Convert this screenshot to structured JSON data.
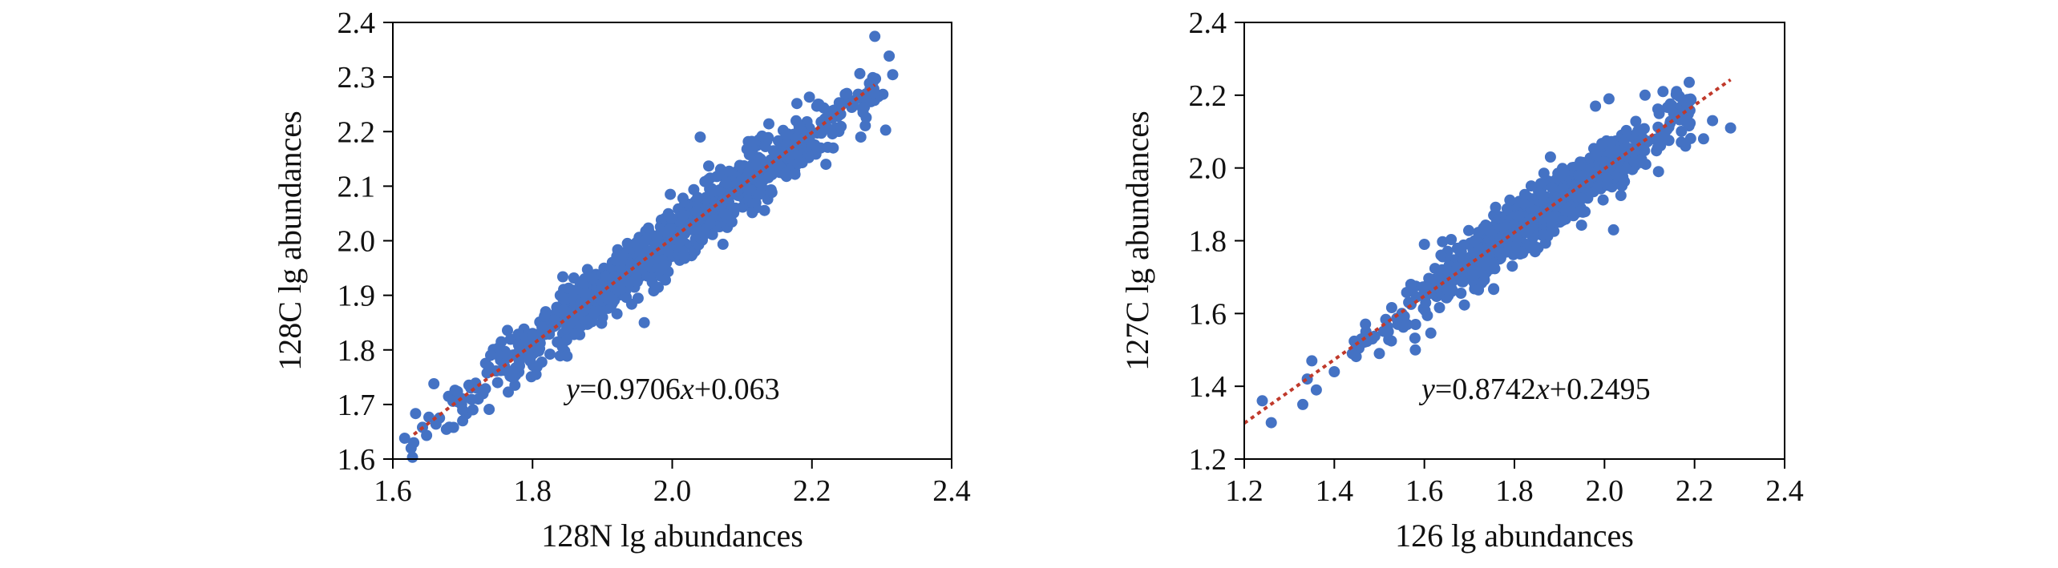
{
  "colors": {
    "point": "#4472C4",
    "fit": "#C0392B",
    "axis": "#000000"
  },
  "chart_data": [
    {
      "type": "scatter",
      "xlabel": "128N lg abundances",
      "ylabel": "128C lg abundances",
      "xlim": [
        1.6,
        2.4
      ],
      "ylim": [
        1.6,
        2.4
      ],
      "xticks": [
        "1.6",
        "1.8",
        "2.0",
        "2.2",
        "2.4"
      ],
      "yticks": [
        "1.6",
        "1.7",
        "1.8",
        "1.9",
        "2.0",
        "2.1",
        "2.2",
        "2.3",
        "2.4"
      ],
      "grid": false,
      "equation": {
        "y": "y",
        "eq1": "=0.9706",
        "x": "x",
        "eq2": "+0.063"
      },
      "fit": {
        "slope": 0.9706,
        "intercept": 0.063,
        "x_range": [
          1.63,
          2.29
        ]
      },
      "cloud": {
        "x_range": [
          1.63,
          2.29
        ],
        "spread": 0.028,
        "n": 900
      },
      "points": [
        {
          "x": 1.63,
          "y": 1.63
        },
        {
          "x": 1.7,
          "y": 1.67
        },
        {
          "x": 1.7,
          "y": 1.69
        },
        {
          "x": 1.72,
          "y": 1.73
        },
        {
          "x": 1.75,
          "y": 1.74
        },
        {
          "x": 1.74,
          "y": 1.79
        },
        {
          "x": 1.76,
          "y": 1.77
        },
        {
          "x": 1.78,
          "y": 1.81
        },
        {
          "x": 1.8,
          "y": 1.83
        },
        {
          "x": 1.77,
          "y": 1.76
        },
        {
          "x": 1.96,
          "y": 1.85
        },
        {
          "x": 2.04,
          "y": 2.19
        },
        {
          "x": 2.27,
          "y": 2.19
        },
        {
          "x": 2.29,
          "y": 2.27
        },
        {
          "x": 2.25,
          "y": 2.27
        },
        {
          "x": 2.21,
          "y": 2.25
        },
        {
          "x": 2.22,
          "y": 2.14
        }
      ]
    },
    {
      "type": "scatter",
      "xlabel": "126 lg abundances",
      "ylabel": "127C lg abundances",
      "xlim": [
        1.2,
        2.4
      ],
      "ylim": [
        1.2,
        2.4
      ],
      "xticks": [
        "1.2",
        "1.4",
        "1.6",
        "1.8",
        "2.0",
        "2.2",
        "2.4"
      ],
      "yticks": [
        "1.2",
        "1.4",
        "1.6",
        "1.8",
        "2.0",
        "2.2",
        "2.4"
      ],
      "grid": false,
      "equation": {
        "y": "y",
        "eq1": "=0.8742",
        "x": "x",
        "eq2": "+0.2495"
      },
      "fit": {
        "slope": 0.8742,
        "intercept": 0.2495,
        "x_range": [
          1.2,
          2.28
        ]
      },
      "cloud": {
        "x_range": [
          1.45,
          2.18
        ],
        "spread": 0.04,
        "n": 800
      },
      "points": [
        {
          "x": 1.24,
          "y": 1.36
        },
        {
          "x": 1.26,
          "y": 1.3
        },
        {
          "x": 1.33,
          "y": 1.35
        },
        {
          "x": 1.34,
          "y": 1.42
        },
        {
          "x": 1.35,
          "y": 1.47
        },
        {
          "x": 1.36,
          "y": 1.39
        },
        {
          "x": 1.4,
          "y": 1.44
        },
        {
          "x": 1.44,
          "y": 1.49
        },
        {
          "x": 1.46,
          "y": 1.53
        },
        {
          "x": 1.47,
          "y": 1.55
        },
        {
          "x": 1.5,
          "y": 1.49
        },
        {
          "x": 1.52,
          "y": 1.55
        },
        {
          "x": 1.55,
          "y": 1.6
        },
        {
          "x": 1.57,
          "y": 1.68
        },
        {
          "x": 1.6,
          "y": 1.79
        },
        {
          "x": 1.63,
          "y": 1.69
        },
        {
          "x": 1.65,
          "y": 1.72
        },
        {
          "x": 1.58,
          "y": 1.5
        },
        {
          "x": 1.88,
          "y": 2.03
        },
        {
          "x": 2.02,
          "y": 1.83
        },
        {
          "x": 2.13,
          "y": 2.21
        },
        {
          "x": 2.16,
          "y": 2.21
        },
        {
          "x": 2.24,
          "y": 2.13
        },
        {
          "x": 2.28,
          "y": 2.11
        },
        {
          "x": 2.22,
          "y": 2.08
        },
        {
          "x": 2.18,
          "y": 2.06
        },
        {
          "x": 2.09,
          "y": 2.2
        },
        {
          "x": 2.01,
          "y": 2.19
        },
        {
          "x": 1.98,
          "y": 2.17
        },
        {
          "x": 2.12,
          "y": 1.99
        }
      ]
    }
  ]
}
